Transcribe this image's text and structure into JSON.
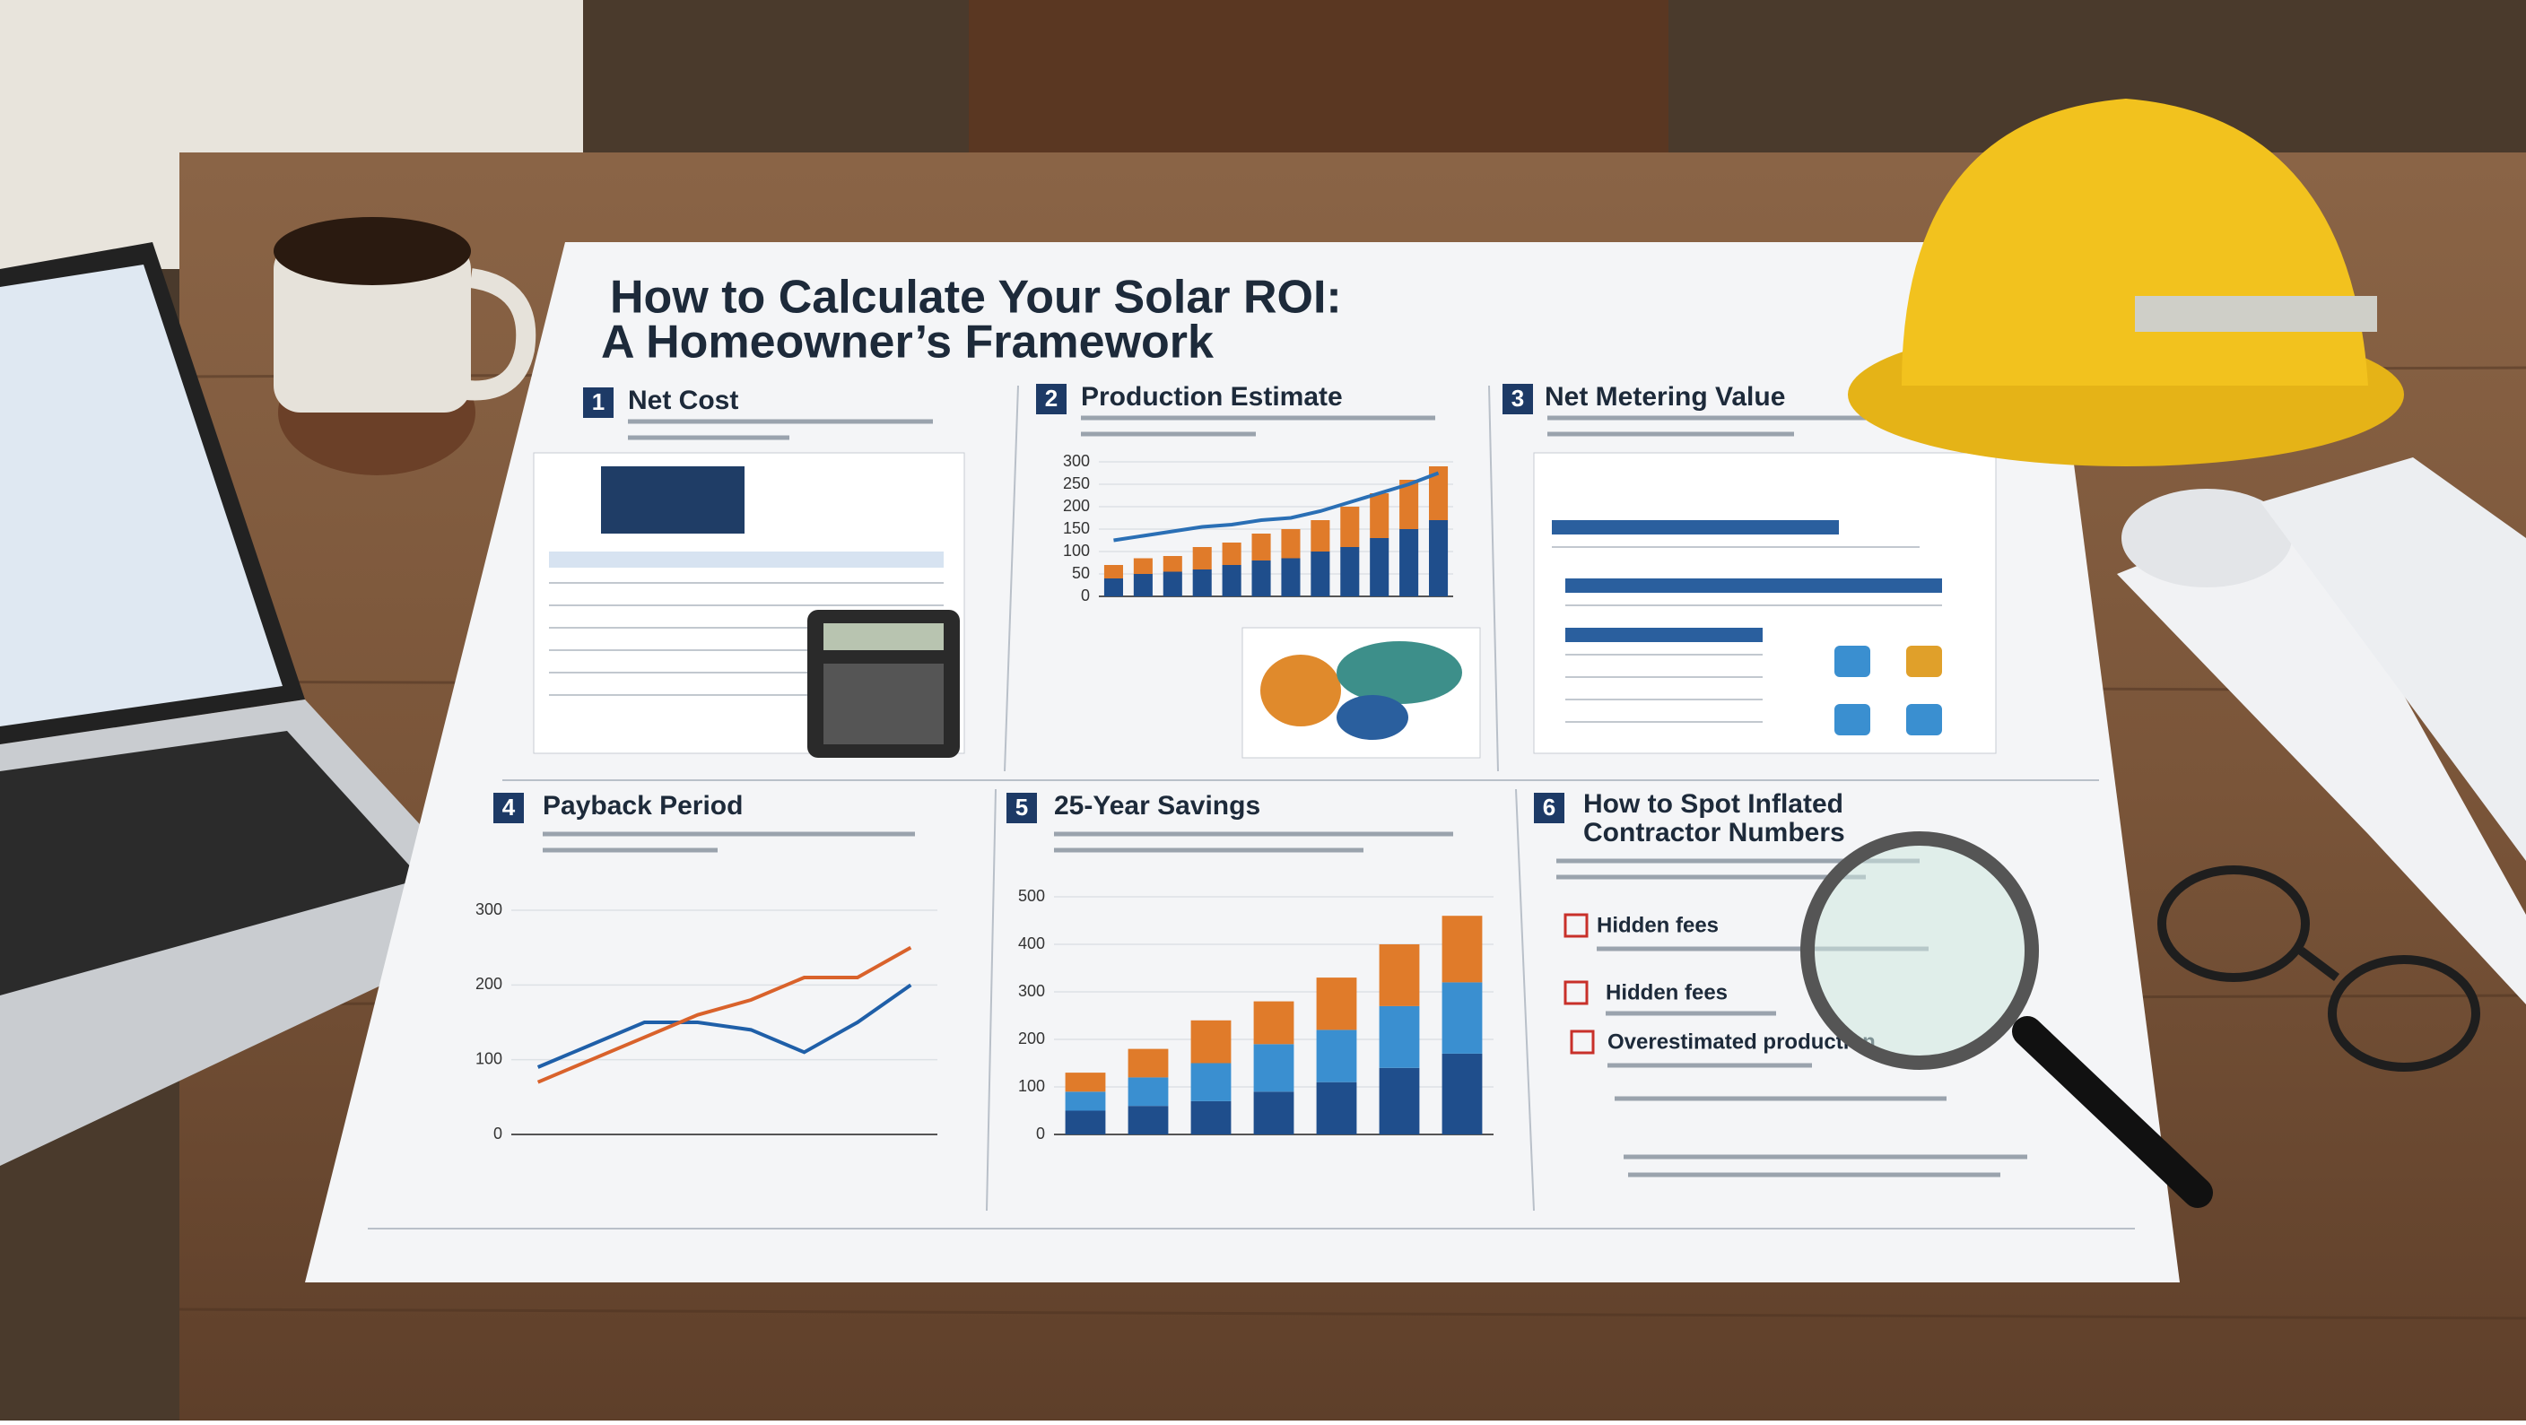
{
  "header": {
    "title_lines": [
      "How to Calculate Your Solar ROI:",
      "A Homeowner’s Framework"
    ]
  },
  "panels": [
    {
      "number": "1",
      "heading": "Net Cost"
    },
    {
      "number": "2",
      "heading": "Production Estimate"
    },
    {
      "number": "3",
      "heading": "Net Metering Value"
    },
    {
      "number": "4",
      "heading": "Payback Period"
    },
    {
      "number": "5",
      "heading": "25-Year Savings"
    },
    {
      "number": "6",
      "heading": [
        "How to Spot Inflated",
        "Contractor Numbers"
      ]
    }
  ],
  "checklist": [
    "Hidden fees",
    "Hidden fees",
    "Overestimated production"
  ],
  "chart_data": [
    {
      "type": "bar",
      "stacked": true,
      "categories": [
        null,
        null,
        null,
        null,
        null,
        null,
        null,
        null,
        null,
        null,
        null,
        null
      ],
      "series": [
        {
          "color": "#1f4e8c",
          "values": [
            40,
            50,
            55,
            60,
            70,
            80,
            85,
            100,
            110,
            130,
            150,
            170
          ]
        },
        {
          "color": "#e07b2a",
          "values": [
            30,
            35,
            35,
            50,
            50,
            60,
            65,
            70,
            90,
            100,
            110,
            120
          ]
        },
        {
          "type": "line",
          "color": "#2a6fb5",
          "values": [
            125,
            135,
            145,
            155,
            160,
            170,
            175,
            190,
            210,
            230,
            250,
            275
          ]
        }
      ],
      "ylim": [
        0,
        300
      ],
      "yticks": [
        0,
        50,
        100,
        150,
        200,
        250,
        300
      ],
      "grid": true
    },
    {
      "type": "line",
      "categories": [
        null,
        null,
        null,
        null,
        null,
        null,
        null,
        null
      ],
      "series": [
        {
          "color": "#1f5fa8",
          "values": [
            90,
            120,
            150,
            150,
            140,
            110,
            150,
            200
          ]
        },
        {
          "color": "#d9622b",
          "values": [
            70,
            100,
            130,
            160,
            180,
            210,
            210,
            250
          ]
        }
      ],
      "ylim": [
        0,
        300
      ],
      "yticks": [
        0,
        100,
        200,
        300
      ],
      "grid": true
    },
    {
      "type": "bar",
      "stacked": true,
      "categories": [
        null,
        null,
        null,
        null,
        null,
        null,
        null
      ],
      "series": [
        {
          "color": "#1f4e8c",
          "values": [
            50,
            60,
            70,
            90,
            110,
            140,
            170
          ]
        },
        {
          "color": "#3a8fd0",
          "values": [
            40,
            60,
            80,
            100,
            110,
            130,
            150
          ]
        },
        {
          "color": "#e07b2a",
          "values": [
            40,
            60,
            90,
            90,
            110,
            130,
            140
          ]
        }
      ],
      "ylim": [
        0,
        500
      ],
      "yticks": [
        0,
        100,
        200,
        300,
        400,
        500
      ],
      "grid": true
    }
  ]
}
